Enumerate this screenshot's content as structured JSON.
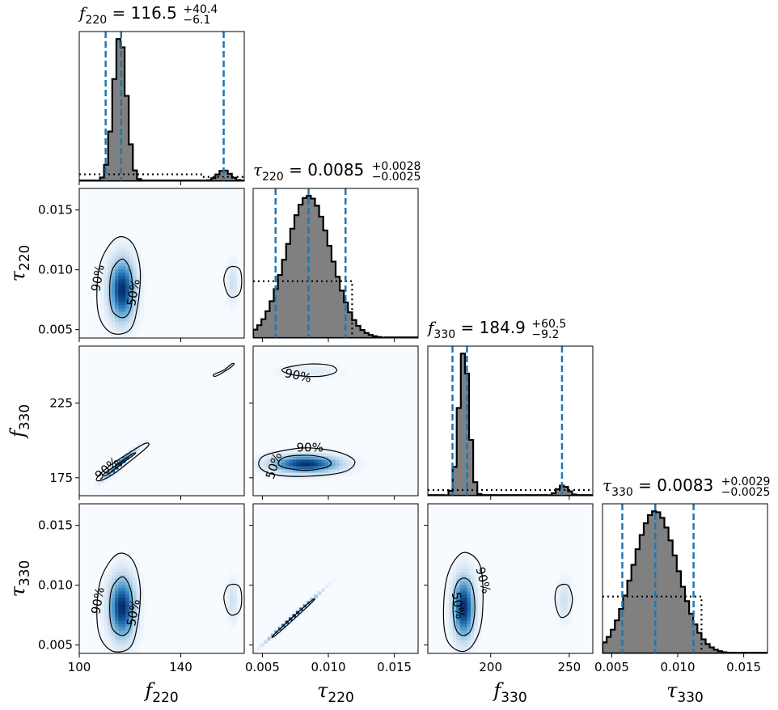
{
  "chart_data": {
    "type": "corner",
    "parameters": [
      {
        "id": "f220",
        "symbol": "f",
        "sub": "220",
        "range": [
          100,
          165
        ],
        "ticks": [
          {
            "v": 100,
            "label": "100"
          },
          {
            "v": 140,
            "label": "140"
          }
        ],
        "title": {
          "value": "116.5",
          "plus": "+40.4",
          "minus": "−6.1"
        },
        "quantiles": [
          110.4,
          116.5,
          156.9
        ]
      },
      {
        "id": "tau220",
        "symbol": "τ",
        "sub": "220",
        "range": [
          0.0043,
          0.0168
        ],
        "ticks": [
          {
            "v": 0.005,
            "label": "0.005"
          },
          {
            "v": 0.01,
            "label": "0.010"
          },
          {
            "v": 0.015,
            "label": "0.015"
          }
        ],
        "title": {
          "value": "0.0085",
          "plus": "+0.0028",
          "minus": "−0.0025"
        },
        "quantiles": [
          0.006,
          0.0085,
          0.0113
        ]
      },
      {
        "id": "f330",
        "symbol": "f",
        "sub": "330",
        "range": [
          160,
          265
        ],
        "ticks": [
          {
            "v": 200,
            "label": "200"
          },
          {
            "v": 250,
            "label": "250"
          }
        ],
        "ticks_y": [
          {
            "v": 175,
            "label": "175"
          },
          {
            "v": 225,
            "label": "225"
          }
        ],
        "y_range": [
          163,
          263
        ],
        "title": {
          "value": "184.9",
          "plus": "+60.5",
          "minus": "−9.2"
        },
        "quantiles": [
          175.7,
          184.9,
          245.4
        ]
      },
      {
        "id": "tau330",
        "symbol": "τ",
        "sub": "330",
        "range": [
          0.0043,
          0.0168
        ],
        "ticks": [
          {
            "v": 0.005,
            "label": "0.005"
          },
          {
            "v": 0.01,
            "label": "0.010"
          },
          {
            "v": 0.015,
            "label": "0.015"
          }
        ],
        "title": {
          "value": "0.0083",
          "plus": "+0.0029",
          "minus": "−0.0025"
        },
        "quantiles": [
          0.0058,
          0.0083,
          0.0112
        ]
      }
    ],
    "histograms": [
      {
        "param": "f220",
        "bins": 40,
        "components": [
          {
            "mean": 116.0,
            "sd": 2.6,
            "weight": 0.93
          },
          {
            "mean": 157.0,
            "sd": 2.6,
            "weight": 0.07
          }
        ],
        "prior_density_levels": [
          {
            "x0": 100,
            "x1": 148,
            "level": 0.048
          },
          {
            "x0": 148,
            "x1": 165,
            "level": 0.03
          }
        ]
      },
      {
        "param": "tau220",
        "bins": 40,
        "components": [
          {
            "mean": 0.0085,
            "sd": 0.0017,
            "weight": 1.0
          }
        ],
        "prior_density_levels": [
          {
            "x0": 0.0043,
            "x1": 0.0118,
            "level": 0.4
          },
          {
            "x0": 0.0118,
            "x1": 0.0168,
            "level": 0.0
          }
        ]
      },
      {
        "param": "f330",
        "bins": 40,
        "components": [
          {
            "mean": 183.0,
            "sd": 3.3,
            "weight": 0.93
          },
          {
            "mean": 246.0,
            "sd": 3.5,
            "weight": 0.07
          }
        ],
        "prior_density_levels": [
          {
            "x0": 160,
            "x1": 265,
            "level": 0.04
          }
        ]
      },
      {
        "param": "tau330",
        "bins": 40,
        "components": [
          {
            "mean": 0.0083,
            "sd": 0.0017,
            "weight": 1.0
          }
        ],
        "prior_density_levels": [
          {
            "x0": 0.0043,
            "x1": 0.0118,
            "level": 0.4
          },
          {
            "x0": 0.0118,
            "x1": 0.0168,
            "level": 0.0
          }
        ]
      }
    ],
    "joint_panels": [
      {
        "x": "f220",
        "y": "tau220",
        "blobs": [
          {
            "mx": 117,
            "my": 0.0083,
            "sx": 3.2,
            "sy": 0.0016,
            "rho": 0.0,
            "w": 1.0
          },
          {
            "mx": 160.5,
            "my": 0.0089,
            "sx": 1.4,
            "sy": 0.0011,
            "rho": 0.0,
            "w": 0.15
          }
        ],
        "contours": [
          {
            "label": "90%",
            "points": [
              [
                115,
                0.0127
              ],
              [
                121,
                0.0122
              ],
              [
                124,
                0.01
              ],
              [
                123,
                0.007
              ],
              [
                120,
                0.005
              ],
              [
                113,
                0.0047
              ],
              [
                108,
                0.006
              ],
              [
                107,
                0.0085
              ],
              [
                109,
                0.011
              ]
            ]
          },
          {
            "label": "50%",
            "points": [
              [
                117,
                0.0109
              ],
              [
                120,
                0.01
              ],
              [
                121,
                0.0083
              ],
              [
                120,
                0.0066
              ],
              [
                117,
                0.006
              ],
              [
                113,
                0.0066
              ],
              [
                112,
                0.0083
              ],
              [
                113,
                0.01
              ]
            ]
          },
          {
            "label": "",
            "points": [
              [
                159,
                0.0102
              ],
              [
                163,
                0.0101
              ],
              [
                164,
                0.009
              ],
              [
                163,
                0.008
              ],
              [
                160,
                0.0077
              ],
              [
                158,
                0.0082
              ],
              [
                157,
                0.0093
              ]
            ]
          }
        ],
        "contour_labels": [
          {
            "text": "90%",
            "x": 107.5,
            "y": 0.0093,
            "rot": -80
          },
          {
            "text": "50%",
            "x": 121.5,
            "y": 0.0081,
            "rot": -80
          }
        ]
      },
      {
        "x": "f220",
        "y": "f330",
        "blobs": [
          {
            "mx": 116,
            "my": 184,
            "sx": 3.5,
            "sy": 5.5,
            "rho": 0.97,
            "w": 1.0
          },
          {
            "mx": 158,
            "my": 247,
            "sx": 1.5,
            "sy": 2.0,
            "rho": 0.95,
            "w": 0.12
          }
        ],
        "contours": [
          {
            "label": "90%",
            "points": [
              [
                108,
                173
              ],
              [
                113,
                177
              ],
              [
                120,
                186
              ],
              [
                127,
                196
              ],
              [
                126,
                198
              ],
              [
                120,
                192
              ],
              [
                112,
                183
              ],
              [
                107,
                175
              ]
            ]
          },
          {
            "label": "50%",
            "points": [
              [
                111,
                177
              ],
              [
                118,
                186
              ],
              [
                122,
                191
              ],
              [
                121,
                191
              ],
              [
                116,
                185
              ],
              [
                110,
                178
              ]
            ]
          },
          {
            "label": "",
            "points": [
              [
                154,
                243
              ],
              [
                159,
                248
              ],
              [
                161,
                251
              ],
              [
                160,
                251
              ],
              [
                157,
                247
              ],
              [
                153,
                244
              ]
            ]
          }
        ],
        "contour_labels": [
          {
            "text": "90%",
            "x": 111,
            "y": 181,
            "rot": -42
          }
        ]
      },
      {
        "x": "tau220",
        "y": "f330",
        "blobs": [
          {
            "mx": 0.0083,
            "my": 184,
            "sx": 0.0016,
            "sy": 3.6,
            "rho": 0.0,
            "w": 1.0
          },
          {
            "mx": 0.0085,
            "my": 246,
            "sx": 0.0016,
            "sy": 2.8,
            "rho": 0.0,
            "w": 0.08
          }
        ],
        "contours": [
          {
            "label": "90%",
            "points": [
              [
                0.0065,
                193
              ],
              [
                0.0085,
                195
              ],
              [
                0.0108,
                192
              ],
              [
                0.012,
                186
              ],
              [
                0.0112,
                179
              ],
              [
                0.0085,
                176
              ],
              [
                0.006,
                177
              ],
              [
                0.0048,
                182
              ],
              [
                0.005,
                189
              ]
            ]
          },
          {
            "label": "50%",
            "points": [
              [
                0.0068,
                189
              ],
              [
                0.0085,
                190
              ],
              [
                0.0098,
                188
              ],
              [
                0.0102,
                184
              ],
              [
                0.0094,
                181
              ],
              [
                0.008,
                180
              ],
              [
                0.0066,
                182
              ],
              [
                0.0062,
                185
              ]
            ]
          },
          {
            "label": "90%",
            "points": [
              [
                0.0066,
                248
              ],
              [
                0.0085,
                251
              ],
              [
                0.0102,
                250
              ],
              [
                0.0106,
                246
              ],
              [
                0.0096,
                243
              ],
              [
                0.008,
                243
              ],
              [
                0.0068,
                245
              ]
            ]
          }
        ],
        "contour_labels": [
          {
            "text": "90%",
            "x": 0.0086,
            "y": 195,
            "rot": 0
          },
          {
            "text": "50%",
            "x": 0.0059,
            "y": 183,
            "rot": -72
          },
          {
            "text": "90%",
            "x": 0.0077,
            "y": 243,
            "rot": 12
          }
        ]
      },
      {
        "x": "f220",
        "y": "tau330",
        "blobs": [
          {
            "mx": 117,
            "my": 0.0081,
            "sx": 3.2,
            "sy": 0.0016,
            "rho": 0.0,
            "w": 1.0
          },
          {
            "mx": 160.5,
            "my": 0.0087,
            "sx": 1.4,
            "sy": 0.0011,
            "rho": 0.0,
            "w": 0.15
          }
        ],
        "contours": [
          {
            "label": "90%",
            "points": [
              [
                115,
                0.0126
              ],
              [
                121,
                0.0121
              ],
              [
                124,
                0.0098
              ],
              [
                123,
                0.0068
              ],
              [
                120,
                0.0048
              ],
              [
                113,
                0.0045
              ],
              [
                108,
                0.0058
              ],
              [
                107,
                0.0083
              ],
              [
                109,
                0.0108
              ]
            ]
          },
          {
            "label": "50%",
            "points": [
              [
                117,
                0.0107
              ],
              [
                120,
                0.0098
              ],
              [
                121,
                0.0081
              ],
              [
                120,
                0.0064
              ],
              [
                117,
                0.0058
              ],
              [
                113,
                0.0064
              ],
              [
                112,
                0.0081
              ],
              [
                113,
                0.0098
              ]
            ]
          },
          {
            "label": "",
            "points": [
              [
                159,
                0.01
              ],
              [
                163,
                0.0099
              ],
              [
                164,
                0.0088
              ],
              [
                163,
                0.0078
              ],
              [
                160,
                0.0075
              ],
              [
                158,
                0.008
              ],
              [
                157,
                0.0091
              ]
            ]
          }
        ],
        "contour_labels": [
          {
            "text": "90%",
            "x": 107.5,
            "y": 0.0087,
            "rot": -80
          },
          {
            "text": "50%",
            "x": 121.5,
            "y": 0.0077,
            "rot": -80
          }
        ]
      },
      {
        "x": "tau220",
        "y": "tau330",
        "blobs": [
          {
            "mx": 0.0073,
            "my": 0.0073,
            "sx": 0.0011,
            "sy": 0.0011,
            "rho": 0.995,
            "w": 0.6
          }
        ],
        "contours": [
          {
            "label": "",
            "points": [
              [
                0.006,
                0.006
              ],
              [
                0.0086,
                0.0086
              ],
              [
                0.0087,
                0.0085
              ],
              [
                0.0061,
                0.0059
              ]
            ]
          }
        ],
        "contour_labels": []
      },
      {
        "x": "f330",
        "y": "tau330",
        "blobs": [
          {
            "mx": 183,
            "my": 0.0081,
            "sx": 4.2,
            "sy": 0.0016,
            "rho": 0.0,
            "w": 1.0
          },
          {
            "mx": 247,
            "my": 0.0087,
            "sx": 2.8,
            "sy": 0.0011,
            "rho": 0.0,
            "w": 0.15
          }
        ],
        "contours": [
          {
            "label": "90%",
            "points": [
              [
                182,
                0.0127
              ],
              [
                192,
                0.012
              ],
              [
                195,
                0.01
              ],
              [
                194,
                0.0068
              ],
              [
                188,
                0.0049
              ],
              [
                180,
                0.0045
              ],
              [
                172,
                0.0055
              ],
              [
                170,
                0.008
              ],
              [
                173,
                0.011
              ]
            ]
          },
          {
            "label": "50%",
            "points": [
              [
                183,
                0.0106
              ],
              [
                188,
                0.01
              ],
              [
                190,
                0.0082
              ],
              [
                188,
                0.0064
              ],
              [
                183,
                0.0058
              ],
              [
                178,
                0.0063
              ],
              [
                176,
                0.0081
              ],
              [
                178,
                0.01
              ]
            ]
          },
          {
            "label": "",
            "points": [
              [
                243,
                0.0099
              ],
              [
                249,
                0.01
              ],
              [
                252,
                0.0089
              ],
              [
                250,
                0.0077
              ],
              [
                245,
                0.0073
              ],
              [
                242,
                0.008
              ],
              [
                241,
                0.0091
              ]
            ]
          }
        ],
        "contour_labels": [
          {
            "text": "90%",
            "x": 195,
            "y": 0.0104,
            "rot": 75
          },
          {
            "text": "50%",
            "x": 179,
            "y": 0.0083,
            "rot": 80
          }
        ]
      }
    ],
    "grid": false,
    "colors": {
      "hist_fill": "#808080",
      "hist_edge": "#000000",
      "quantile": "#1f77b4",
      "prior": "#000000",
      "density_high": "#08306b",
      "density_low": "#f7fbff",
      "contour": "#000000"
    }
  }
}
